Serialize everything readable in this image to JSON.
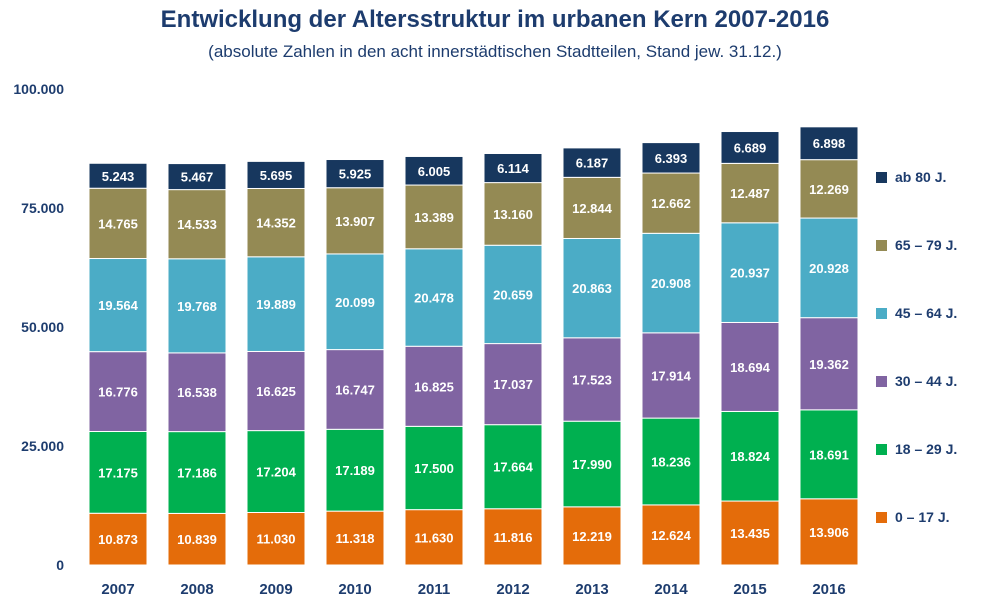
{
  "chart_data": {
    "type": "bar",
    "stacked": true,
    "title": "Entwicklung der Altersstruktur im urbanen Kern 2007-2016",
    "subtitle": "(absolute Zahlen in den acht innerstädtischen Stadtteilen, Stand jew. 31.12.)",
    "categories": [
      "2007",
      "2008",
      "2009",
      "2010",
      "2011",
      "2012",
      "2013",
      "2014",
      "2015",
      "2016"
    ],
    "ylim": [
      0,
      100000
    ],
    "yticks": [
      0,
      25000,
      50000,
      75000,
      100000
    ],
    "ytick_labels": [
      "0",
      "25.000",
      "50.000",
      "75.000",
      "100.000"
    ],
    "grid": false,
    "legend_position": "right",
    "series": [
      {
        "name": "0 – 17 J.",
        "color": "#e46c0a",
        "values": [
          10873,
          10839,
          11030,
          11318,
          11630,
          11816,
          12219,
          12624,
          13435,
          13906
        ],
        "labels": [
          "10.873",
          "10.839",
          "11.030",
          "11.318",
          "11.630",
          "11.816",
          "12.219",
          "12.624",
          "13.435",
          "13.906"
        ]
      },
      {
        "name": "18 – 29 J.",
        "color": "#00b050",
        "values": [
          17175,
          17186,
          17204,
          17189,
          17500,
          17664,
          17990,
          18236,
          18824,
          18691
        ],
        "labels": [
          "17.175",
          "17.186",
          "17.204",
          "17.189",
          "17.500",
          "17.664",
          "17.990",
          "18.236",
          "18.824",
          "18.691"
        ]
      },
      {
        "name": "30 – 44 J.",
        "color": "#8064a2",
        "values": [
          16776,
          16538,
          16625,
          16747,
          16825,
          17037,
          17523,
          17914,
          18694,
          19362
        ],
        "labels": [
          "16.776",
          "16.538",
          "16.625",
          "16.747",
          "16.825",
          "17.037",
          "17.523",
          "17.914",
          "18.694",
          "19.362"
        ]
      },
      {
        "name": "45 – 64 J.",
        "color": "#4bacc6",
        "values": [
          19564,
          19768,
          19889,
          20099,
          20478,
          20659,
          20863,
          20908,
          20937,
          20928
        ],
        "labels": [
          "19.564",
          "19.768",
          "19.889",
          "20.099",
          "20.478",
          "20.659",
          "20.863",
          "20.908",
          "20.937",
          "20.928"
        ]
      },
      {
        "name": "65 – 79 J.",
        "color": "#948a54",
        "values": [
          14765,
          14533,
          14352,
          13907,
          13389,
          13160,
          12844,
          12662,
          12487,
          12269
        ],
        "labels": [
          "14.765",
          "14.533",
          "14.352",
          "13.907",
          "13.389",
          "13.160",
          "12.844",
          "12.662",
          "12.487",
          "12.269"
        ]
      },
      {
        "name": "ab 80 J.",
        "color": "#17375e",
        "values": [
          5243,
          5467,
          5695,
          5925,
          6005,
          6114,
          6187,
          6393,
          6689,
          6898
        ],
        "labels": [
          "5.243",
          "5.467",
          "5.695",
          "5.925",
          "6.005",
          "6.114",
          "6.187",
          "6.393",
          "6.689",
          "6.898"
        ]
      }
    ]
  }
}
